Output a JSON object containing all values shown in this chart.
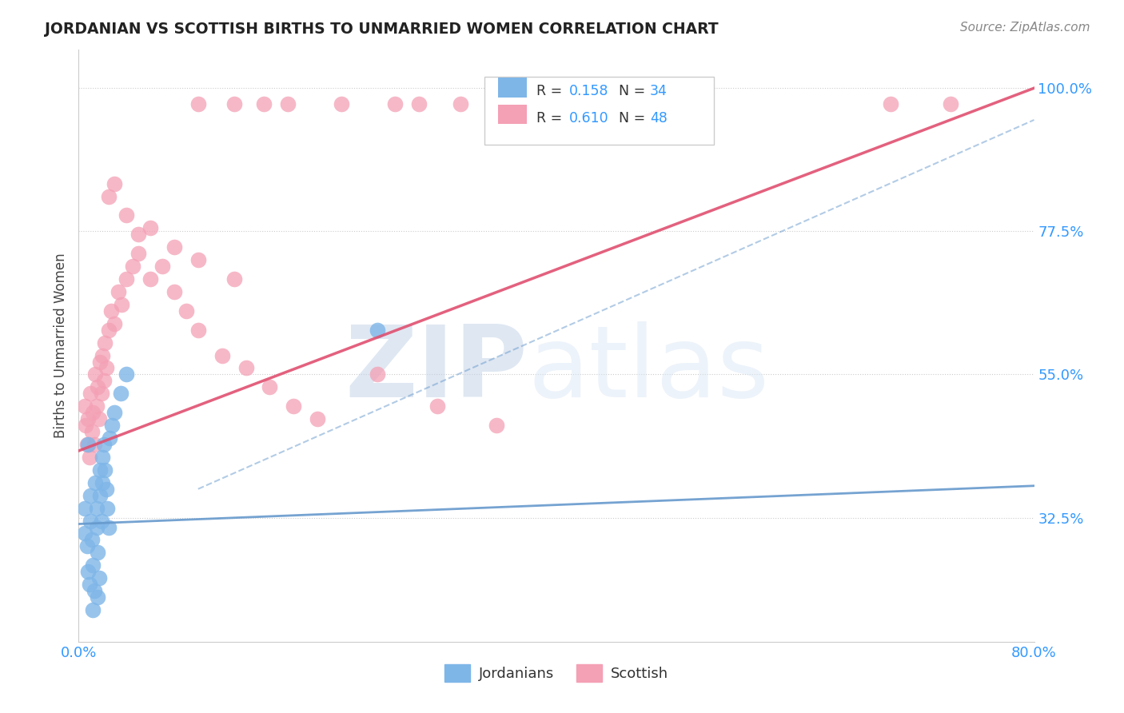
{
  "title": "JORDANIAN VS SCOTTISH BIRTHS TO UNMARRIED WOMEN CORRELATION CHART",
  "source": "Source: ZipAtlas.com",
  "ylabel": "Births to Unmarried Women",
  "xlim": [
    0.0,
    0.8
  ],
  "ylim": [
    0.13,
    1.06
  ],
  "yticks": [
    0.325,
    0.55,
    0.775,
    1.0
  ],
  "ytick_labels": [
    "32.5%",
    "55.0%",
    "77.5%",
    "100.0%"
  ],
  "xticks": [
    0.0,
    0.1,
    0.2,
    0.3,
    0.4,
    0.5,
    0.6,
    0.7,
    0.8
  ],
  "xtick_labels": [
    "0.0%",
    "",
    "",
    "",
    "",
    "",
    "",
    "",
    "80.0%"
  ],
  "color_jordan": "#7eb6e8",
  "color_scottish": "#f4a0b5",
  "color_jordan_line": "#6699cc",
  "color_scottish_line": "#e05070",
  "watermark_zip": "ZIP",
  "watermark_atlas": "atlas",
  "watermark_color": "#dde8f5",
  "jordan_line_x0": 0.0,
  "jordan_line_y0": 0.315,
  "jordan_line_x1": 0.8,
  "jordan_line_y1": 0.375,
  "scot_line_x0": 0.0,
  "scot_line_y0": 0.43,
  "scot_line_x1": 0.8,
  "scot_line_y1": 1.0,
  "jordanian_x": [
    0.005,
    0.005,
    0.007,
    0.008,
    0.009,
    0.01,
    0.01,
    0.011,
    0.012,
    0.013,
    0.014,
    0.015,
    0.015,
    0.016,
    0.017,
    0.018,
    0.018,
    0.019,
    0.02,
    0.02,
    0.021,
    0.022,
    0.023,
    0.024,
    0.025,
    0.026,
    0.028,
    0.03,
    0.035,
    0.04,
    0.25,
    0.008,
    0.012,
    0.016
  ],
  "jordanian_y": [
    0.34,
    0.3,
    0.28,
    0.24,
    0.22,
    0.36,
    0.32,
    0.29,
    0.25,
    0.21,
    0.38,
    0.34,
    0.31,
    0.27,
    0.23,
    0.4,
    0.36,
    0.32,
    0.42,
    0.38,
    0.44,
    0.4,
    0.37,
    0.34,
    0.31,
    0.45,
    0.47,
    0.49,
    0.52,
    0.55,
    0.62,
    0.44,
    0.18,
    0.2
  ],
  "scottish_x": [
    0.005,
    0.006,
    0.007,
    0.008,
    0.009,
    0.01,
    0.011,
    0.012,
    0.013,
    0.014,
    0.015,
    0.016,
    0.017,
    0.018,
    0.019,
    0.02,
    0.021,
    0.022,
    0.023,
    0.025,
    0.027,
    0.03,
    0.033,
    0.036,
    0.04,
    0.045,
    0.05,
    0.06,
    0.07,
    0.08,
    0.09,
    0.1,
    0.12,
    0.14,
    0.16,
    0.18,
    0.2,
    0.25,
    0.3,
    0.35,
    0.06,
    0.08,
    0.1,
    0.13,
    0.04,
    0.05,
    0.025,
    0.03
  ],
  "scottish_y": [
    0.5,
    0.47,
    0.44,
    0.48,
    0.42,
    0.52,
    0.46,
    0.49,
    0.44,
    0.55,
    0.5,
    0.53,
    0.48,
    0.57,
    0.52,
    0.58,
    0.54,
    0.6,
    0.56,
    0.62,
    0.65,
    0.63,
    0.68,
    0.66,
    0.7,
    0.72,
    0.74,
    0.7,
    0.72,
    0.68,
    0.65,
    0.62,
    0.58,
    0.56,
    0.53,
    0.5,
    0.48,
    0.55,
    0.5,
    0.47,
    0.78,
    0.75,
    0.73,
    0.7,
    0.8,
    0.77,
    0.83,
    0.85
  ],
  "scottish_top_x": [
    0.1,
    0.13,
    0.155,
    0.175,
    0.22,
    0.265,
    0.285,
    0.32,
    0.35,
    0.68,
    0.73
  ],
  "scottish_top_y": [
    0.975,
    0.975,
    0.975,
    0.975,
    0.975,
    0.975,
    0.975,
    0.975,
    0.975,
    0.975,
    0.975
  ]
}
